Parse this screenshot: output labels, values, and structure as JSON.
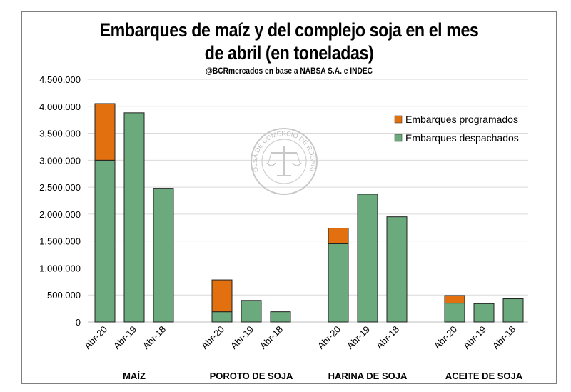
{
  "chart_data": {
    "type": "bar",
    "stacked": true,
    "title_line1": "Embarques de maíz y del complejo soja en el mes",
    "title_line2": "de abril (en toneladas)",
    "subtitle": "@BCRmercados en base a NABSA S.A. e INDEC",
    "groups": [
      "MAÍZ",
      "POROTO DE SOJA",
      "HARINA DE SOJA",
      "ACEITE DE SOJA"
    ],
    "categories": [
      "Abr-20",
      "Abr-19",
      "Abr-18"
    ],
    "y_ticks": [
      "0",
      "500.000",
      "1.000.000",
      "1.500.000",
      "2.000.000",
      "2.500.000",
      "3.000.000",
      "3.500.000",
      "4.000.000",
      "4.500.000"
    ],
    "ylim": [
      0,
      4500000
    ],
    "legend_position": "top-right",
    "series": [
      {
        "name": "Embarques despachados",
        "color": "#6aaa7c",
        "values": [
          [
            3000000,
            3880000,
            2480000
          ],
          [
            190000,
            400000,
            190000
          ],
          [
            1450000,
            2370000,
            1950000
          ],
          [
            350000,
            340000,
            430000
          ]
        ]
      },
      {
        "name": "Embarques programados",
        "color": "#e2700f",
        "values": [
          [
            1050000,
            0,
            0
          ],
          [
            590000,
            0,
            0
          ],
          [
            290000,
            0,
            0
          ],
          [
            140000,
            0,
            0
          ]
        ]
      }
    ]
  },
  "watermark": {
    "text": "BOLSA DE COMERCIO DE ROSARIO"
  }
}
